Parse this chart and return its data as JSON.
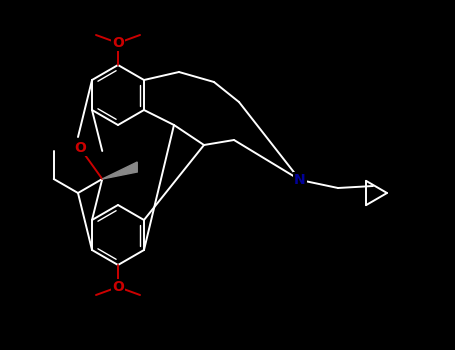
{
  "background_color": "#000000",
  "bond_color": "#ffffff",
  "O_color": "#cc0000",
  "N_color": "#000099",
  "figsize": [
    4.55,
    3.5
  ],
  "dpi": 100,
  "xlim": [
    0,
    455
  ],
  "ylim": [
    0,
    350
  ]
}
